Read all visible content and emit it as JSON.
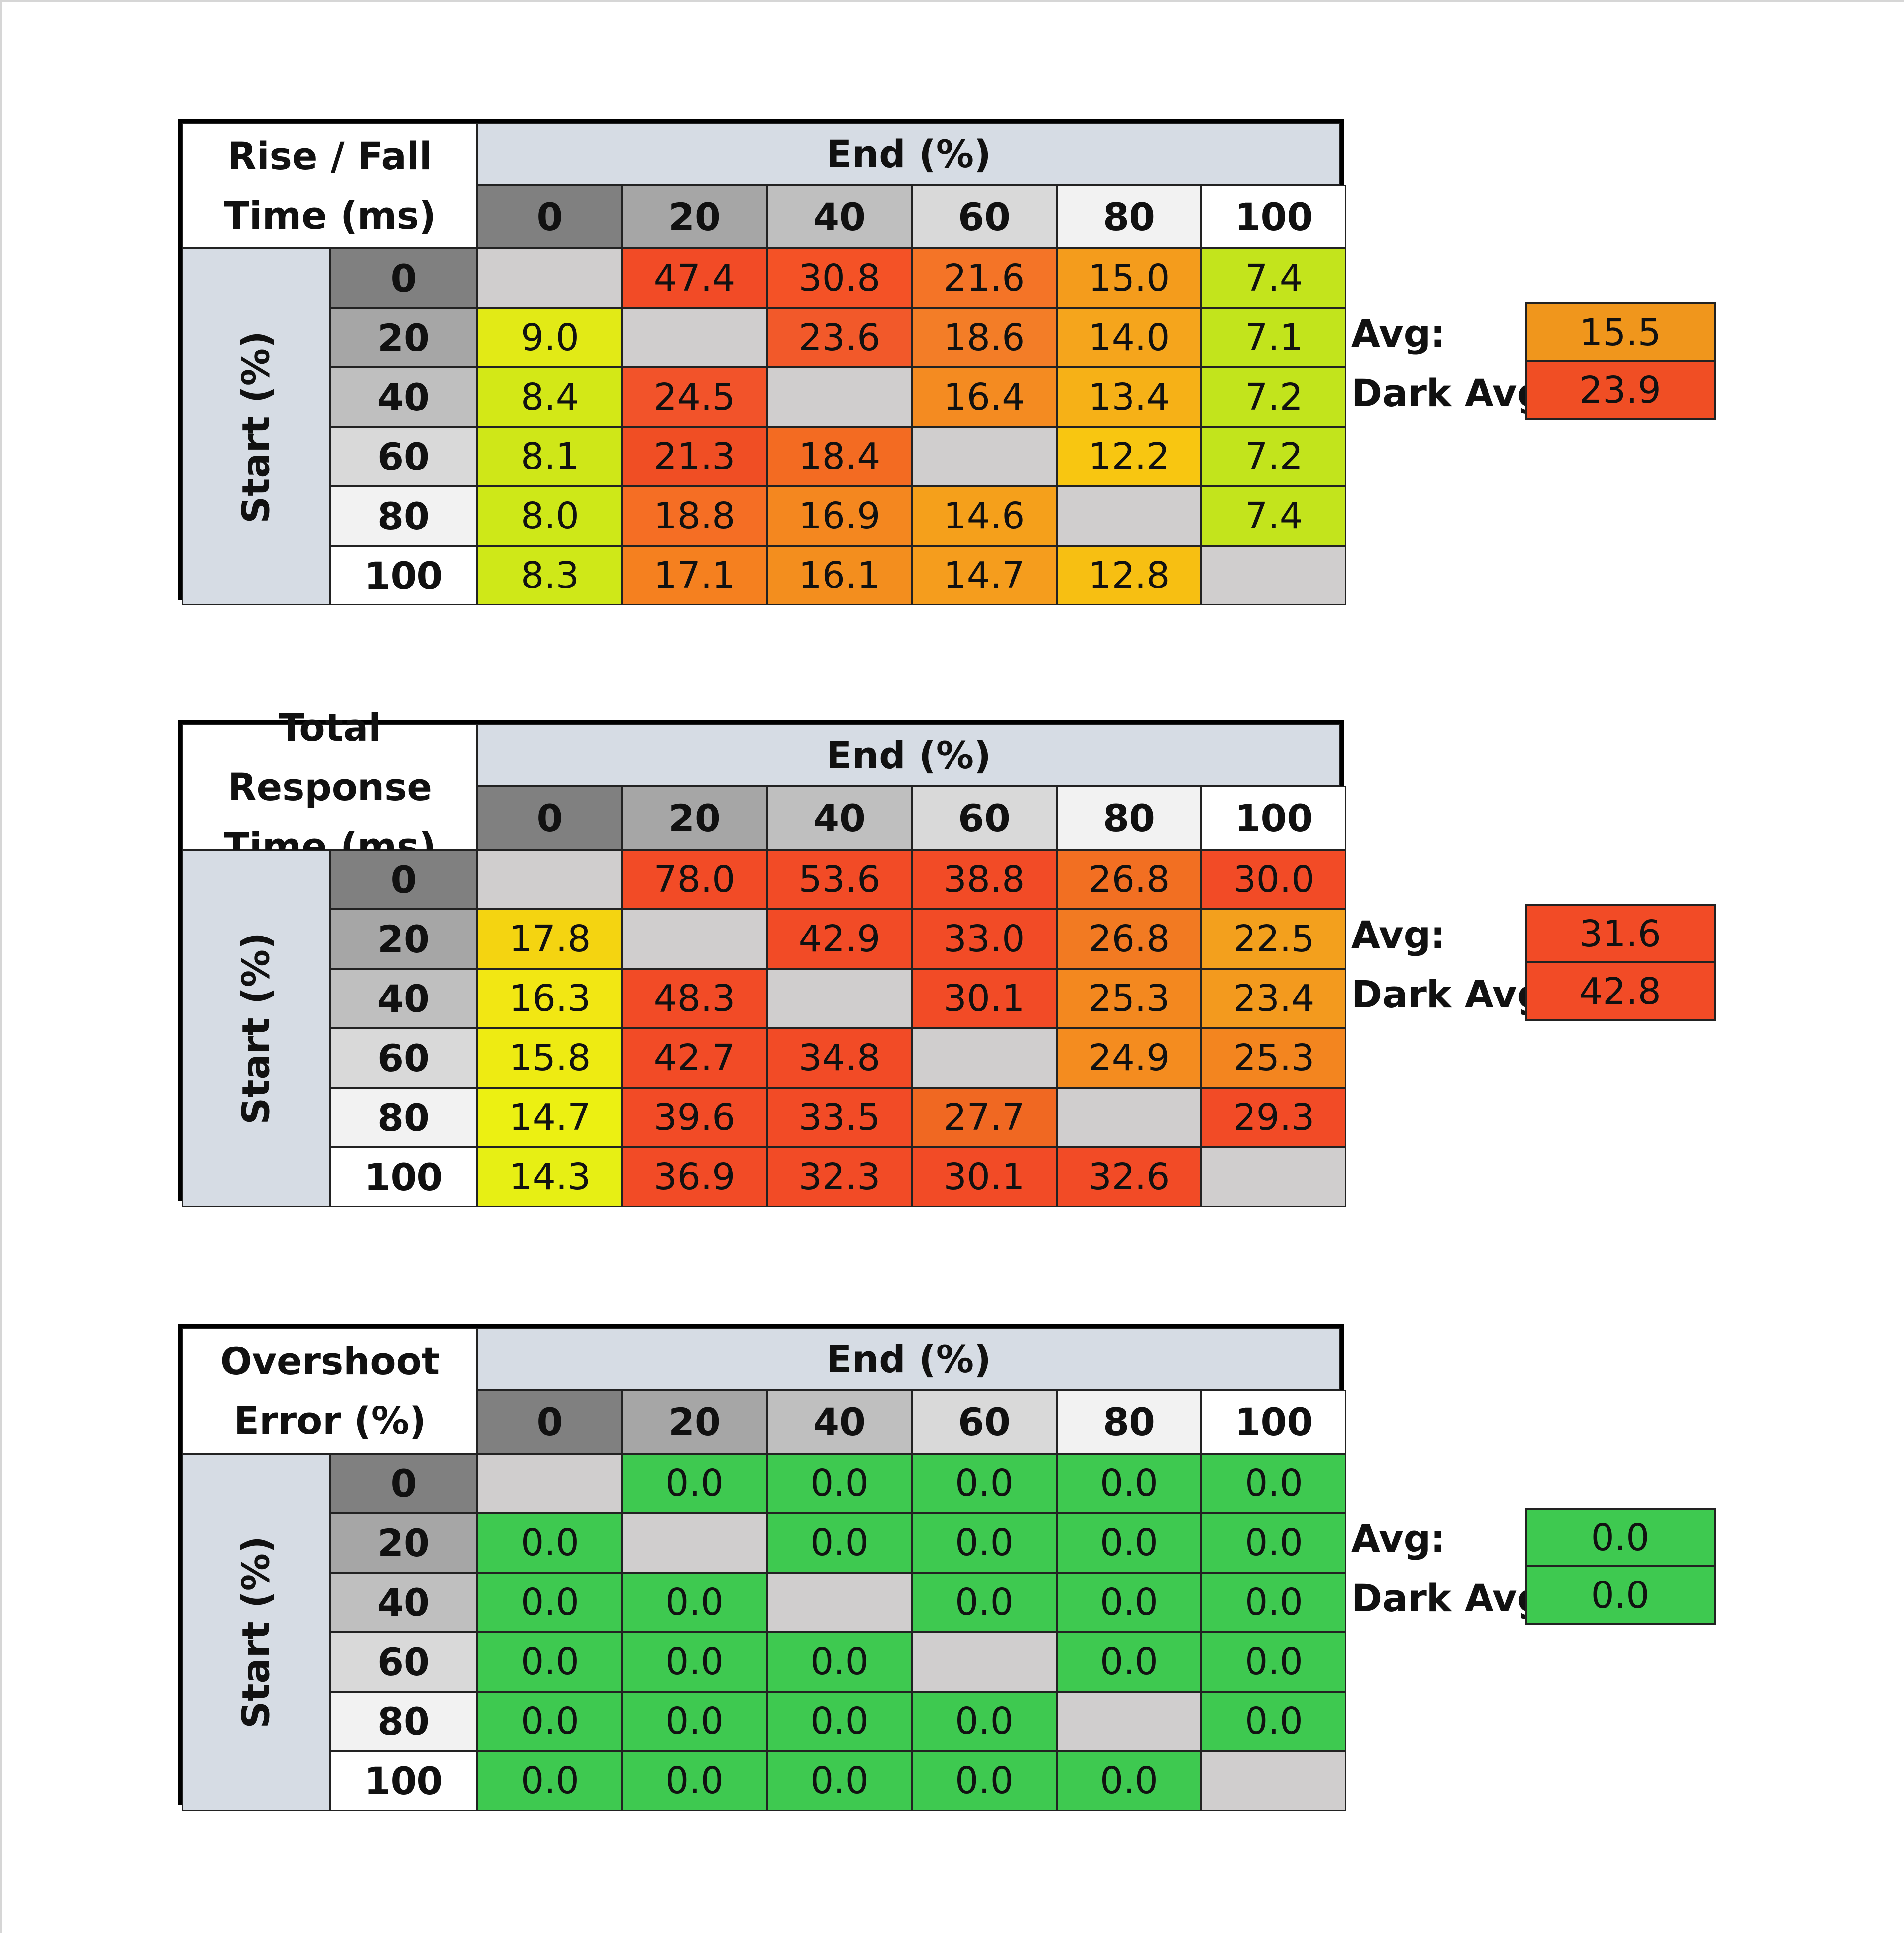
{
  "tables": [
    {
      "title_lines": [
        "Rise / Fall",
        "Time (ms)"
      ],
      "end_header": "End (%)",
      "start_label": "Start (%)",
      "columns": [
        "0",
        "20",
        "40",
        "60",
        "80",
        "100"
      ],
      "rows": [
        {
          "label": "0",
          "values": [
            "",
            "47.4",
            "30.8",
            "21.6",
            "15.0",
            "7.4"
          ],
          "colors": [
            "#d0cece",
            "#f24b26",
            "#f45226",
            "#f47427",
            "#f49c1c",
            "#c3e41c"
          ]
        },
        {
          "label": "20",
          "values": [
            "9.0",
            "",
            "23.6",
            "18.6",
            "14.0",
            "7.1"
          ],
          "colors": [
            "#e2ea16",
            "#d0cece",
            "#f2592a",
            "#f37d27",
            "#f5a51c",
            "#c2e41c"
          ]
        },
        {
          "label": "40",
          "values": [
            "8.4",
            "24.5",
            "",
            "16.4",
            "13.4",
            "7.2"
          ],
          "colors": [
            "#d3e817",
            "#f2532a",
            "#d0cece",
            "#f48b21",
            "#f6b117",
            "#c2e41c"
          ]
        },
        {
          "label": "60",
          "values": [
            "8.1",
            "21.3",
            "18.4",
            "",
            "12.2",
            "7.2"
          ],
          "colors": [
            "#cfe718",
            "#f04e24",
            "#f36b22",
            "#d0cece",
            "#f8c611",
            "#c2e41c"
          ]
        },
        {
          "label": "80",
          "values": [
            "8.0",
            "18.8",
            "16.9",
            "14.6",
            "",
            "7.4"
          ],
          "colors": [
            "#cee818",
            "#f56e24",
            "#f4871f",
            "#f5a01b",
            "#d0cece",
            "#c3e41c"
          ]
        },
        {
          "label": "100",
          "values": [
            "8.3",
            "17.1",
            "16.1",
            "14.7",
            "12.8",
            ""
          ],
          "colors": [
            "#cfe818",
            "#f5801f",
            "#f38e1e",
            "#f59d1d",
            "#f7bf12",
            "#d0cece"
          ]
        }
      ],
      "avg_label": "Avg:",
      "avg_value": "15.5",
      "avg_color": "#f0961c",
      "dark_avg_label": "Dark Avg:",
      "dark_avg_value": "23.9",
      "dark_avg_color": "#f04e24"
    },
    {
      "title_lines": [
        "Total Response",
        "Time (ms)"
      ],
      "end_header": "End (%)",
      "start_label": "Start (%)",
      "columns": [
        "0",
        "20",
        "40",
        "60",
        "80",
        "100"
      ],
      "rows": [
        {
          "label": "0",
          "values": [
            "",
            "78.0",
            "53.6",
            "38.8",
            "26.8",
            "30.0"
          ],
          "colors": [
            "#d0cece",
            "#f24b26",
            "#f24b26",
            "#f24b26",
            "#f26f22",
            "#f24b26"
          ]
        },
        {
          "label": "20",
          "values": [
            "17.8",
            "",
            "42.9",
            "33.0",
            "26.8",
            "22.5"
          ],
          "colors": [
            "#f4d411",
            "#d0cece",
            "#f24b26",
            "#f24b26",
            "#f27a22",
            "#f3a01d"
          ]
        },
        {
          "label": "40",
          "values": [
            "16.3",
            "48.3",
            "",
            "30.1",
            "25.3",
            "23.4"
          ],
          "colors": [
            "#f2e713",
            "#f24b26",
            "#d0cece",
            "#f24b26",
            "#f3881f",
            "#f39a1e"
          ]
        },
        {
          "label": "60",
          "values": [
            "15.8",
            "42.7",
            "34.8",
            "",
            "24.9",
            "25.3"
          ],
          "colors": [
            "#eeeb12",
            "#f24b26",
            "#f24b26",
            "#d0cece",
            "#f48c1f",
            "#f3851f"
          ]
        },
        {
          "label": "80",
          "values": [
            "14.7",
            "39.6",
            "33.5",
            "27.7",
            "",
            "29.3"
          ],
          "colors": [
            "#ecf012",
            "#f24b26",
            "#f24b26",
            "#f06822",
            "#d0cece",
            "#f24b26"
          ]
        },
        {
          "label": "100",
          "values": [
            "14.3",
            "36.9",
            "32.3",
            "30.1",
            "32.6",
            ""
          ],
          "colors": [
            "#e7ef14",
            "#f24b26",
            "#f24b26",
            "#f24b26",
            "#f24b26",
            "#d0cece"
          ]
        }
      ],
      "avg_label": "Avg:",
      "avg_value": "31.6",
      "avg_color": "#f24b26",
      "dark_avg_label": "Dark Avg:",
      "dark_avg_value": "42.8",
      "dark_avg_color": "#f24b26"
    },
    {
      "title_lines": [
        "Overshoot",
        "Error (%)"
      ],
      "end_header": "End (%)",
      "start_label": "Start (%)",
      "columns": [
        "0",
        "20",
        "40",
        "60",
        "80",
        "100"
      ],
      "rows": [
        {
          "label": "0",
          "values": [
            "",
            "0.0",
            "0.0",
            "0.0",
            "0.0",
            "0.0"
          ],
          "colors": [
            "#d0cece",
            "#3ec950",
            "#3ec950",
            "#3ec950",
            "#3ec950",
            "#3ec950"
          ]
        },
        {
          "label": "20",
          "values": [
            "0.0",
            "",
            "0.0",
            "0.0",
            "0.0",
            "0.0"
          ],
          "colors": [
            "#3ec950",
            "#d0cece",
            "#3ec950",
            "#3ec950",
            "#3ec950",
            "#3ec950"
          ]
        },
        {
          "label": "40",
          "values": [
            "0.0",
            "0.0",
            "",
            "0.0",
            "0.0",
            "0.0"
          ],
          "colors": [
            "#3ec950",
            "#3ec950",
            "#d0cece",
            "#3ec950",
            "#3ec950",
            "#3ec950"
          ]
        },
        {
          "label": "60",
          "values": [
            "0.0",
            "0.0",
            "0.0",
            "",
            "0.0",
            "0.0"
          ],
          "colors": [
            "#3ec950",
            "#3ec950",
            "#3ec950",
            "#d0cece",
            "#3ec950",
            "#3ec950"
          ]
        },
        {
          "label": "80",
          "values": [
            "0.0",
            "0.0",
            "0.0",
            "0.0",
            "",
            "0.0"
          ],
          "colors": [
            "#3ec950",
            "#3ec950",
            "#3ec950",
            "#3ec950",
            "#d0cece",
            "#3ec950"
          ]
        },
        {
          "label": "100",
          "values": [
            "0.0",
            "0.0",
            "0.0",
            "0.0",
            "0.0",
            ""
          ],
          "colors": [
            "#3ec950",
            "#3ec950",
            "#3ec950",
            "#3ec950",
            "#3ec950",
            "#d0cece"
          ]
        }
      ],
      "avg_label": "Avg:",
      "avg_value": "0.0",
      "avg_color": "#3ec950",
      "dark_avg_label": "Dark Avg:",
      "dark_avg_value": "0.0",
      "dark_avg_color": "#3ec950"
    }
  ],
  "header_shades": [
    "#808080",
    "#a6a6a6",
    "#bfbfbf",
    "#d9d9d9",
    "#f2f2f2",
    "#ffffff"
  ]
}
